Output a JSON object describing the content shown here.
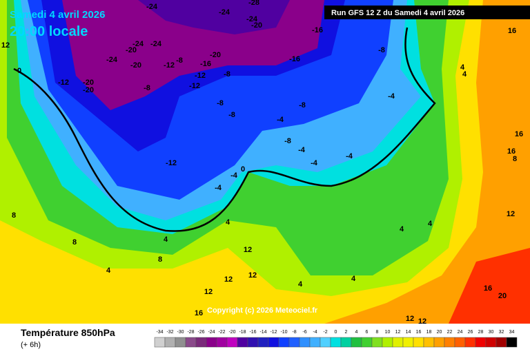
{
  "header": {
    "date": "Samedi 4 avril 2026",
    "time": "20:00 locale",
    "run": "Run GFS 12 Z du Samedi 4 avril 2026"
  },
  "copyright": "Copyright (c) 2026 Meteociel.fr",
  "footer": {
    "title": "Température 850hPa",
    "step": "(+ 6h)"
  },
  "legend": {
    "ticks": [
      -34,
      -32,
      -30,
      -28,
      -26,
      -24,
      -22,
      -20,
      -18,
      -16,
      -14,
      -12,
      -10,
      -8,
      -6,
      -4,
      -2,
      0,
      2,
      4,
      6,
      8,
      10,
      12,
      14,
      16,
      18,
      20,
      22,
      24,
      26,
      28,
      30,
      32,
      34
    ],
    "colors": [
      "#d0d0d0",
      "#b0b0b0",
      "#909090",
      "#8a4a8a",
      "#7a2a7a",
      "#8a008a",
      "#a000a0",
      "#c000c0",
      "#5000a0",
      "#3010b0",
      "#2020c0",
      "#1010e0",
      "#1040ff",
      "#2060ff",
      "#3090ff",
      "#40b0ff",
      "#50d0ff",
      "#00e0e0",
      "#00d0a0",
      "#20c040",
      "#40d030",
      "#80e020",
      "#b0f000",
      "#e0f000",
      "#f0f000",
      "#ffe000",
      "#ffc000",
      "#ffa000",
      "#ff8000",
      "#ff6000",
      "#ff3000",
      "#f00000",
      "#d00000",
      "#a00000",
      "#000000"
    ]
  },
  "contour_labels": [
    -24,
    -24,
    -28,
    -24,
    -20,
    -16,
    -24,
    -24,
    -20,
    -24,
    -20,
    -12,
    -8,
    -20,
    -16,
    -16,
    -12,
    -8,
    -12,
    -20,
    -20,
    -8,
    -12,
    -8,
    -4,
    -8,
    -8,
    -8,
    -4,
    -12,
    -8,
    -4,
    -4,
    -4,
    -4,
    -4,
    0,
    0,
    4,
    4,
    4,
    4,
    8,
    8,
    8,
    4,
    12,
    12,
    12,
    12,
    16,
    16,
    20,
    16,
    16,
    16,
    12,
    12,
    12,
    4,
    4,
    4,
    4,
    8,
    12
  ]
}
